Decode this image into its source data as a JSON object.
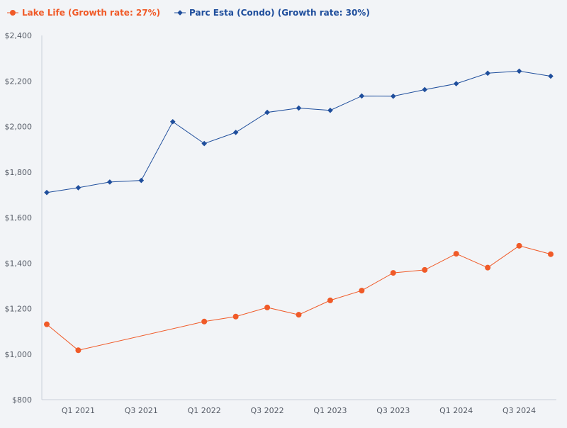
{
  "chart_data": {
    "type": "line",
    "title": "",
    "xlabel": "",
    "ylabel": "",
    "ylim": [
      800,
      2400
    ],
    "yticks": [
      800,
      1000,
      1200,
      1400,
      1600,
      1800,
      2000,
      2200,
      2400
    ],
    "ytick_labels": [
      "$800",
      "$1,000",
      "$1,200",
      "$1,400",
      "$1,600",
      "$1,800",
      "$2,000",
      "$2,200",
      "$2,400"
    ],
    "x_index_range": [
      0,
      16
    ],
    "xtick_labels": [
      {
        "index": 1,
        "label": "Q1 2021"
      },
      {
        "index": 3,
        "label": "Q3 2021"
      },
      {
        "index": 5,
        "label": "Q1 2022"
      },
      {
        "index": 7,
        "label": "Q3 2022"
      },
      {
        "index": 9,
        "label": "Q1 2023"
      },
      {
        "index": 11,
        "label": "Q3 2023"
      },
      {
        "index": 13,
        "label": "Q1 2024"
      },
      {
        "index": 15,
        "label": "Q3 2024"
      }
    ],
    "legend_position": "top-left",
    "grid": false,
    "series": [
      {
        "name": "Lake Life (Growth rate: 27%)",
        "color": "#f05a28",
        "marker": "circle",
        "points": [
          {
            "x": 0,
            "y": 1131
          },
          {
            "x": 1,
            "y": 1017
          },
          {
            "x": 5,
            "y": 1143
          },
          {
            "x": 6,
            "y": 1165
          },
          {
            "x": 7,
            "y": 1205
          },
          {
            "x": 8,
            "y": 1173
          },
          {
            "x": 9,
            "y": 1236
          },
          {
            "x": 10,
            "y": 1279
          },
          {
            "x": 11,
            "y": 1357
          },
          {
            "x": 12,
            "y": 1370
          },
          {
            "x": 13,
            "y": 1441
          },
          {
            "x": 14,
            "y": 1380
          },
          {
            "x": 15,
            "y": 1476
          },
          {
            "x": 16,
            "y": 1439
          }
        ]
      },
      {
        "name": "Parc Esta (Condo) (Growth rate: 30%)",
        "color": "#1f4e9c",
        "marker": "diamond",
        "points": [
          {
            "x": 0,
            "y": 1710
          },
          {
            "x": 1,
            "y": 1731
          },
          {
            "x": 2,
            "y": 1756
          },
          {
            "x": 3,
            "y": 1763
          },
          {
            "x": 4,
            "y": 2021
          },
          {
            "x": 5,
            "y": 1925
          },
          {
            "x": 6,
            "y": 1974
          },
          {
            "x": 7,
            "y": 2062
          },
          {
            "x": 8,
            "y": 2081
          },
          {
            "x": 9,
            "y": 2071
          },
          {
            "x": 10,
            "y": 2134
          },
          {
            "x": 11,
            "y": 2133
          },
          {
            "x": 12,
            "y": 2162
          },
          {
            "x": 13,
            "y": 2188
          },
          {
            "x": 14,
            "y": 2234
          },
          {
            "x": 15,
            "y": 2243
          },
          {
            "x": 16,
            "y": 2221
          }
        ]
      }
    ]
  }
}
